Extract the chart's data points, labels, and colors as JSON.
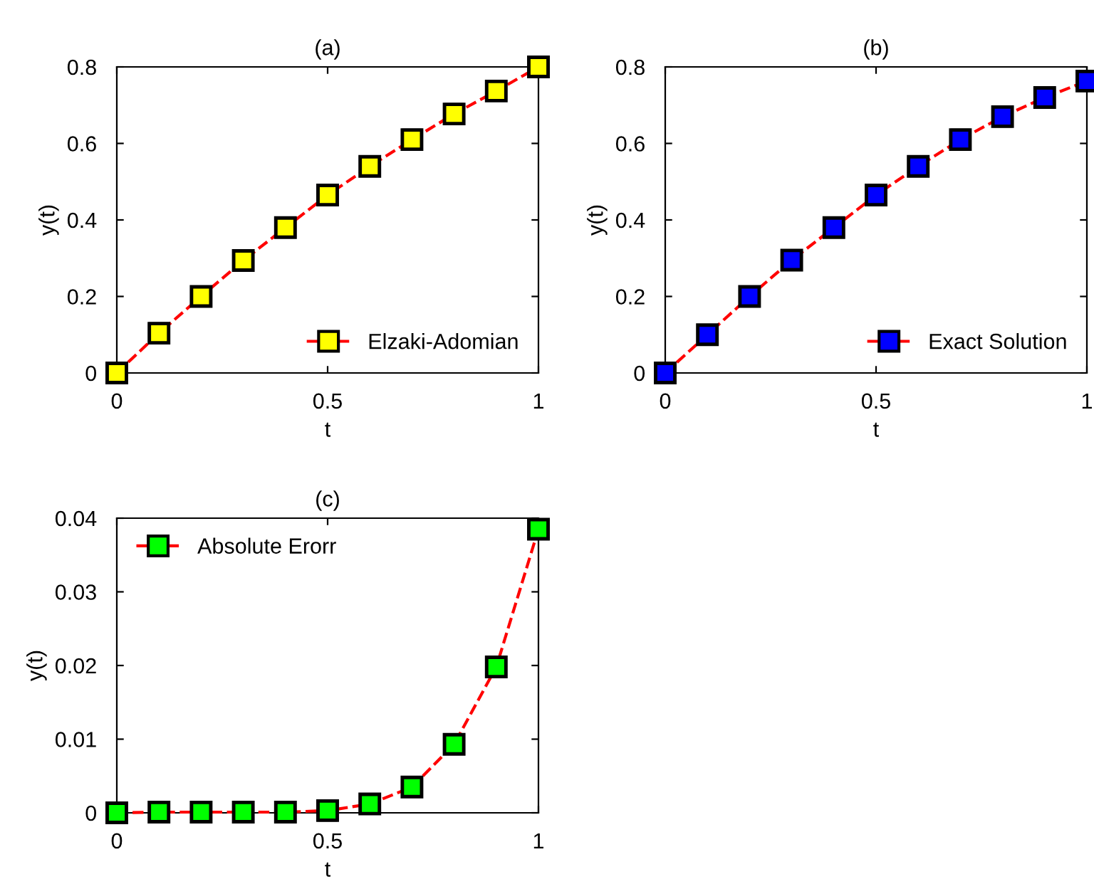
{
  "chart_data": [
    {
      "type": "line",
      "title": "(a)",
      "xlabel": "t",
      "ylabel": "y(t)",
      "x": [
        0,
        0.1,
        0.2,
        0.3,
        0.4,
        0.5,
        0.6,
        0.7,
        0.8,
        0.9,
        1
      ],
      "series": [
        {
          "name": "Elzaki-Adomian",
          "color": "#ff0000",
          "colors": [
            "#ffff00",
            "#ffff00",
            "#ffff00",
            "#ffff00",
            "#ffff00",
            "#ffff00",
            "#ffff00",
            "#ffff00",
            "#ffff00",
            "#ffff00",
            "#ffff00"
          ],
          "values": [
            0,
            0.104,
            0.2,
            0.294,
            0.38,
            0.465,
            0.54,
            0.61,
            0.677,
            0.737,
            0.8
          ]
        }
      ],
      "xlim": [
        0,
        1
      ],
      "xticks": [
        0,
        0.5,
        1
      ],
      "ylim": [
        0,
        0.8
      ],
      "yticks": [
        0,
        0.2,
        0.4,
        0.6,
        0.8
      ],
      "marker": "square",
      "line_style": "dashed",
      "legend": "bottom right",
      "grid": false
    },
    {
      "type": "line",
      "title": "(b)",
      "xlabel": "t",
      "ylabel": "y(t)",
      "x": [
        0,
        0.1,
        0.2,
        0.3,
        0.4,
        0.5,
        0.6,
        0.7,
        0.8,
        0.9,
        1
      ],
      "series": [
        {
          "name": "Exact Solution",
          "color": "#ff0000",
          "colors": [
            "#0000ff",
            "#0000ff",
            "#0000ff",
            "#0000ff",
            "#0000ff",
            "#0000ff",
            "#0000ff",
            "#0000ff",
            "#0000ff",
            "#0000ff",
            "#0000ff"
          ],
          "values": [
            0,
            0.1,
            0.2,
            0.295,
            0.38,
            0.465,
            0.54,
            0.61,
            0.67,
            0.72,
            0.763
          ]
        }
      ],
      "xlim": [
        0,
        1
      ],
      "xticks": [
        0,
        0.5,
        1
      ],
      "ylim": [
        0,
        0.8
      ],
      "yticks": [
        0,
        0.2,
        0.4,
        0.6,
        0.8
      ],
      "marker": "square",
      "line_style": "dashed",
      "legend": "bottom right",
      "grid": false
    },
    {
      "type": "line",
      "title": "(c)",
      "xlabel": "t",
      "ylabel": "y(t)",
      "x": [
        0,
        0.1,
        0.2,
        0.3,
        0.4,
        0.5,
        0.6,
        0.7,
        0.8,
        0.9,
        1
      ],
      "series": [
        {
          "name": "Absolute Erorr",
          "color": "#ff0000",
          "colors": [
            "#00ff00",
            "#00ff00",
            "#00ff00",
            "#00ff00",
            "#00ff00",
            "#00ff00",
            "#00ff00",
            "#00ff00",
            "#00ff00",
            "#00ff00",
            "#00ff00"
          ],
          "values": [
            0,
            0.0001,
            0.0001,
            0.0001,
            0.0001,
            0.0003,
            0.0012,
            0.0035,
            0.0093,
            0.0198,
            0.0385
          ]
        }
      ],
      "xlim": [
        0,
        1
      ],
      "xticks": [
        0,
        0.5,
        1
      ],
      "ylim": [
        0,
        0.04
      ],
      "yticks": [
        0,
        0.01,
        0.02,
        0.03,
        0.04
      ],
      "marker": "square",
      "line_style": "dashed",
      "legend": "top left",
      "grid": false
    }
  ]
}
